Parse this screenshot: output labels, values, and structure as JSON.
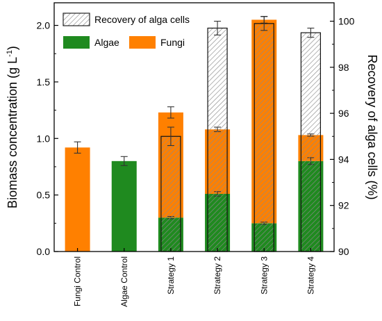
{
  "chart_data": {
    "type": "bar",
    "categories": [
      "Fungi Control",
      "Algae Control",
      "Strategy 1",
      "Strategy 2",
      "Strategy 3",
      "Strategy 4"
    ],
    "series": [
      {
        "name": "Algae",
        "axis": "left",
        "values": [
          0,
          0.8,
          0.3,
          0.51,
          0.25,
          0.8
        ],
        "errors": [
          0,
          0.04,
          0.01,
          0.02,
          0.01,
          0.03
        ],
        "color": "#1f8a1f"
      },
      {
        "name": "Fungi",
        "axis": "left",
        "values": [
          0.92,
          0,
          0.93,
          0.57,
          1.8,
          0.23
        ],
        "totals": [
          0.92,
          0.8,
          1.23,
          1.08,
          2.05,
          1.03
        ],
        "errors": [
          0.05,
          0,
          0.05,
          0.02,
          0.03,
          0.01
        ],
        "color": "#ff8000"
      },
      {
        "name": "Recovery of alga cells",
        "axis": "right",
        "values": [
          null,
          null,
          95.0,
          99.7,
          99.9,
          99.5
        ],
        "errors": [
          null,
          null,
          0.4,
          0.3,
          0.3,
          0.2
        ],
        "pattern": "hatched"
      }
    ],
    "left_axis": {
      "label": "Biomass concentration (g L",
      "label_sup": "-1",
      "label_end": ")",
      "range": [
        0,
        2.2
      ],
      "ticks": [
        "0.0",
        "0.5",
        "1.0",
        "1.5",
        "2.0"
      ],
      "tick_values": [
        0,
        0.5,
        1.0,
        1.5,
        2.0
      ]
    },
    "right_axis": {
      "label": "Recovery of alga cells (%)",
      "range": [
        90,
        100.8
      ],
      "ticks": [
        "90",
        "92",
        "94",
        "96",
        "98",
        "100"
      ],
      "tick_values": [
        90,
        92,
        94,
        96,
        98,
        100
      ]
    },
    "legend": {
      "placement": "top-left",
      "items": [
        {
          "label": "Recovery of alga cells",
          "kind": "hatch"
        },
        {
          "label": "Algae",
          "kind": "algae"
        },
        {
          "label": "Fungi",
          "kind": "fungi"
        }
      ]
    },
    "grid": false
  }
}
